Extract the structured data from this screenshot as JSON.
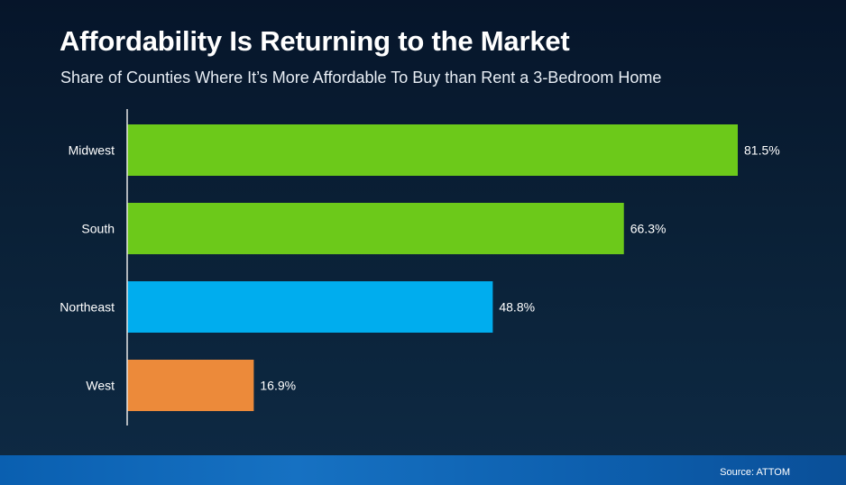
{
  "chart_data": {
    "type": "bar",
    "orientation": "horizontal",
    "title": "Affordability Is Returning to the Market",
    "subtitle": "Share of Counties Where It’s More Affordable To Buy than Rent a 3-Bedroom Home",
    "categories": [
      "Midwest",
      "South",
      "Northeast",
      "West"
    ],
    "values": [
      81.5,
      66.3,
      48.8,
      16.9
    ],
    "value_labels": [
      "81.5%",
      "66.3%",
      "48.8%",
      "16.9%"
    ],
    "colors": [
      "#6cc91a",
      "#6cc91a",
      "#00adee",
      "#ec8a3a"
    ],
    "xlim": [
      0,
      81.5
    ],
    "xlabel": "",
    "ylabel": "",
    "grid": false,
    "legend": "none"
  },
  "footer": {
    "source": "Source: ATTOM"
  }
}
